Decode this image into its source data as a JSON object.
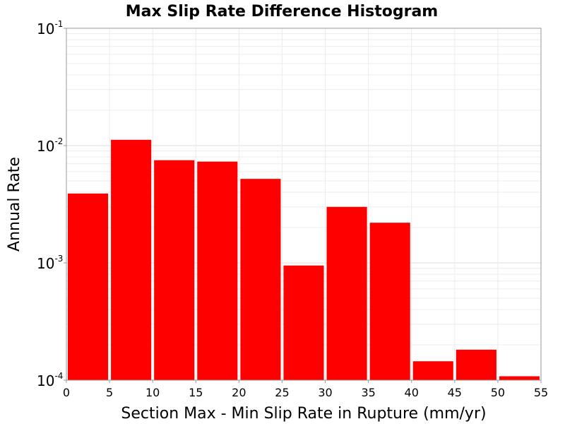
{
  "chart_data": {
    "type": "bar",
    "title": "Max Slip Rate Difference Histogram",
    "xlabel": "Section Max - Min Slip Rate in Rupture (mm/yr)",
    "ylabel": "Annual Rate",
    "xlim": [
      0,
      55
    ],
    "ylim": [
      0.0001,
      0.1
    ],
    "yscale": "log",
    "grid": true,
    "bar_color": "#ff0000",
    "x_ticks": [
      "0",
      "5",
      "10",
      "15",
      "20",
      "25",
      "30",
      "35",
      "40",
      "45",
      "50",
      "55"
    ],
    "y_ticks": [
      {
        "value": 0.1,
        "base": "10",
        "exp": "-1"
      },
      {
        "value": 0.01,
        "base": "10",
        "exp": "-2"
      },
      {
        "value": 0.001,
        "base": "10",
        "exp": "-3"
      },
      {
        "value": 0.0001,
        "base": "10",
        "exp": "-4"
      }
    ],
    "bins": [
      {
        "start": 0,
        "end": 5,
        "value": 0.0039
      },
      {
        "start": 5,
        "end": 10,
        "value": 0.0112
      },
      {
        "start": 10,
        "end": 15,
        "value": 0.0075
      },
      {
        "start": 15,
        "end": 20,
        "value": 0.0073
      },
      {
        "start": 20,
        "end": 25,
        "value": 0.0052
      },
      {
        "start": 25,
        "end": 30,
        "value": 0.00095
      },
      {
        "start": 30,
        "end": 35,
        "value": 0.003
      },
      {
        "start": 35,
        "end": 40,
        "value": 0.0022
      },
      {
        "start": 40,
        "end": 45,
        "value": 0.000145
      },
      {
        "start": 45,
        "end": 50,
        "value": 0.000182
      },
      {
        "start": 50,
        "end": 55,
        "value": 0.000108
      }
    ]
  }
}
